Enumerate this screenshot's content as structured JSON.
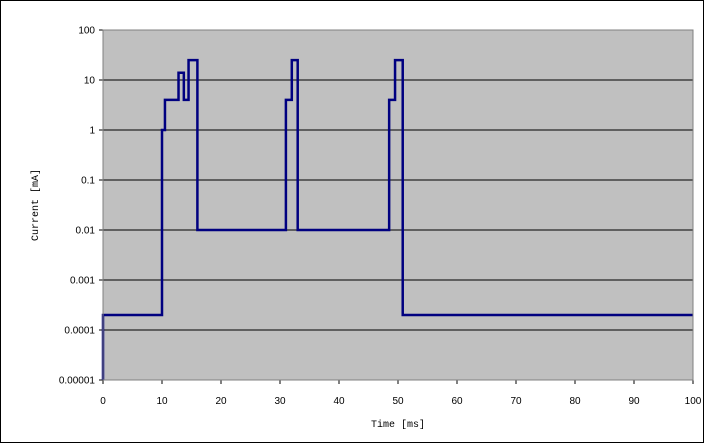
{
  "chart_data": {
    "type": "line",
    "title": "",
    "xlabel": "Time [ms]",
    "ylabel": "Current [mA]",
    "xlim": [
      0,
      100
    ],
    "ylim": [
      1e-05,
      100
    ],
    "yscale": "log",
    "grid": "horizontal",
    "legend": "none",
    "x_ticks": [
      "0",
      "10",
      "20",
      "30",
      "40",
      "50",
      "60",
      "70",
      "80",
      "90",
      "100"
    ],
    "y_ticks": [
      "100",
      "10",
      "1",
      "0.1",
      "0.01",
      "0.001",
      "0.0001",
      "0.00001"
    ],
    "colors": {
      "plot_background": "#c0c0c0",
      "line": "#000080",
      "gridline": "#000000",
      "frame": "#000000"
    },
    "series": [
      {
        "x": [
          0,
          0,
          10,
          10,
          10.5,
          10.5,
          12.8,
          12.8,
          13.7,
          13.7,
          14.5,
          14.5,
          16,
          16,
          31,
          31,
          32,
          32,
          33,
          33,
          48.5,
          48.5,
          49.5,
          49.5,
          50.8,
          50.8,
          100
        ],
        "y": [
          1e-05,
          0.0002,
          0.0002,
          1,
          1,
          4,
          4,
          14,
          14,
          4,
          4,
          25,
          25,
          0.01,
          0.01,
          4,
          4,
          25,
          25,
          0.01,
          0.01,
          4,
          4,
          25,
          25,
          0.0002,
          0.0002
        ]
      }
    ]
  }
}
